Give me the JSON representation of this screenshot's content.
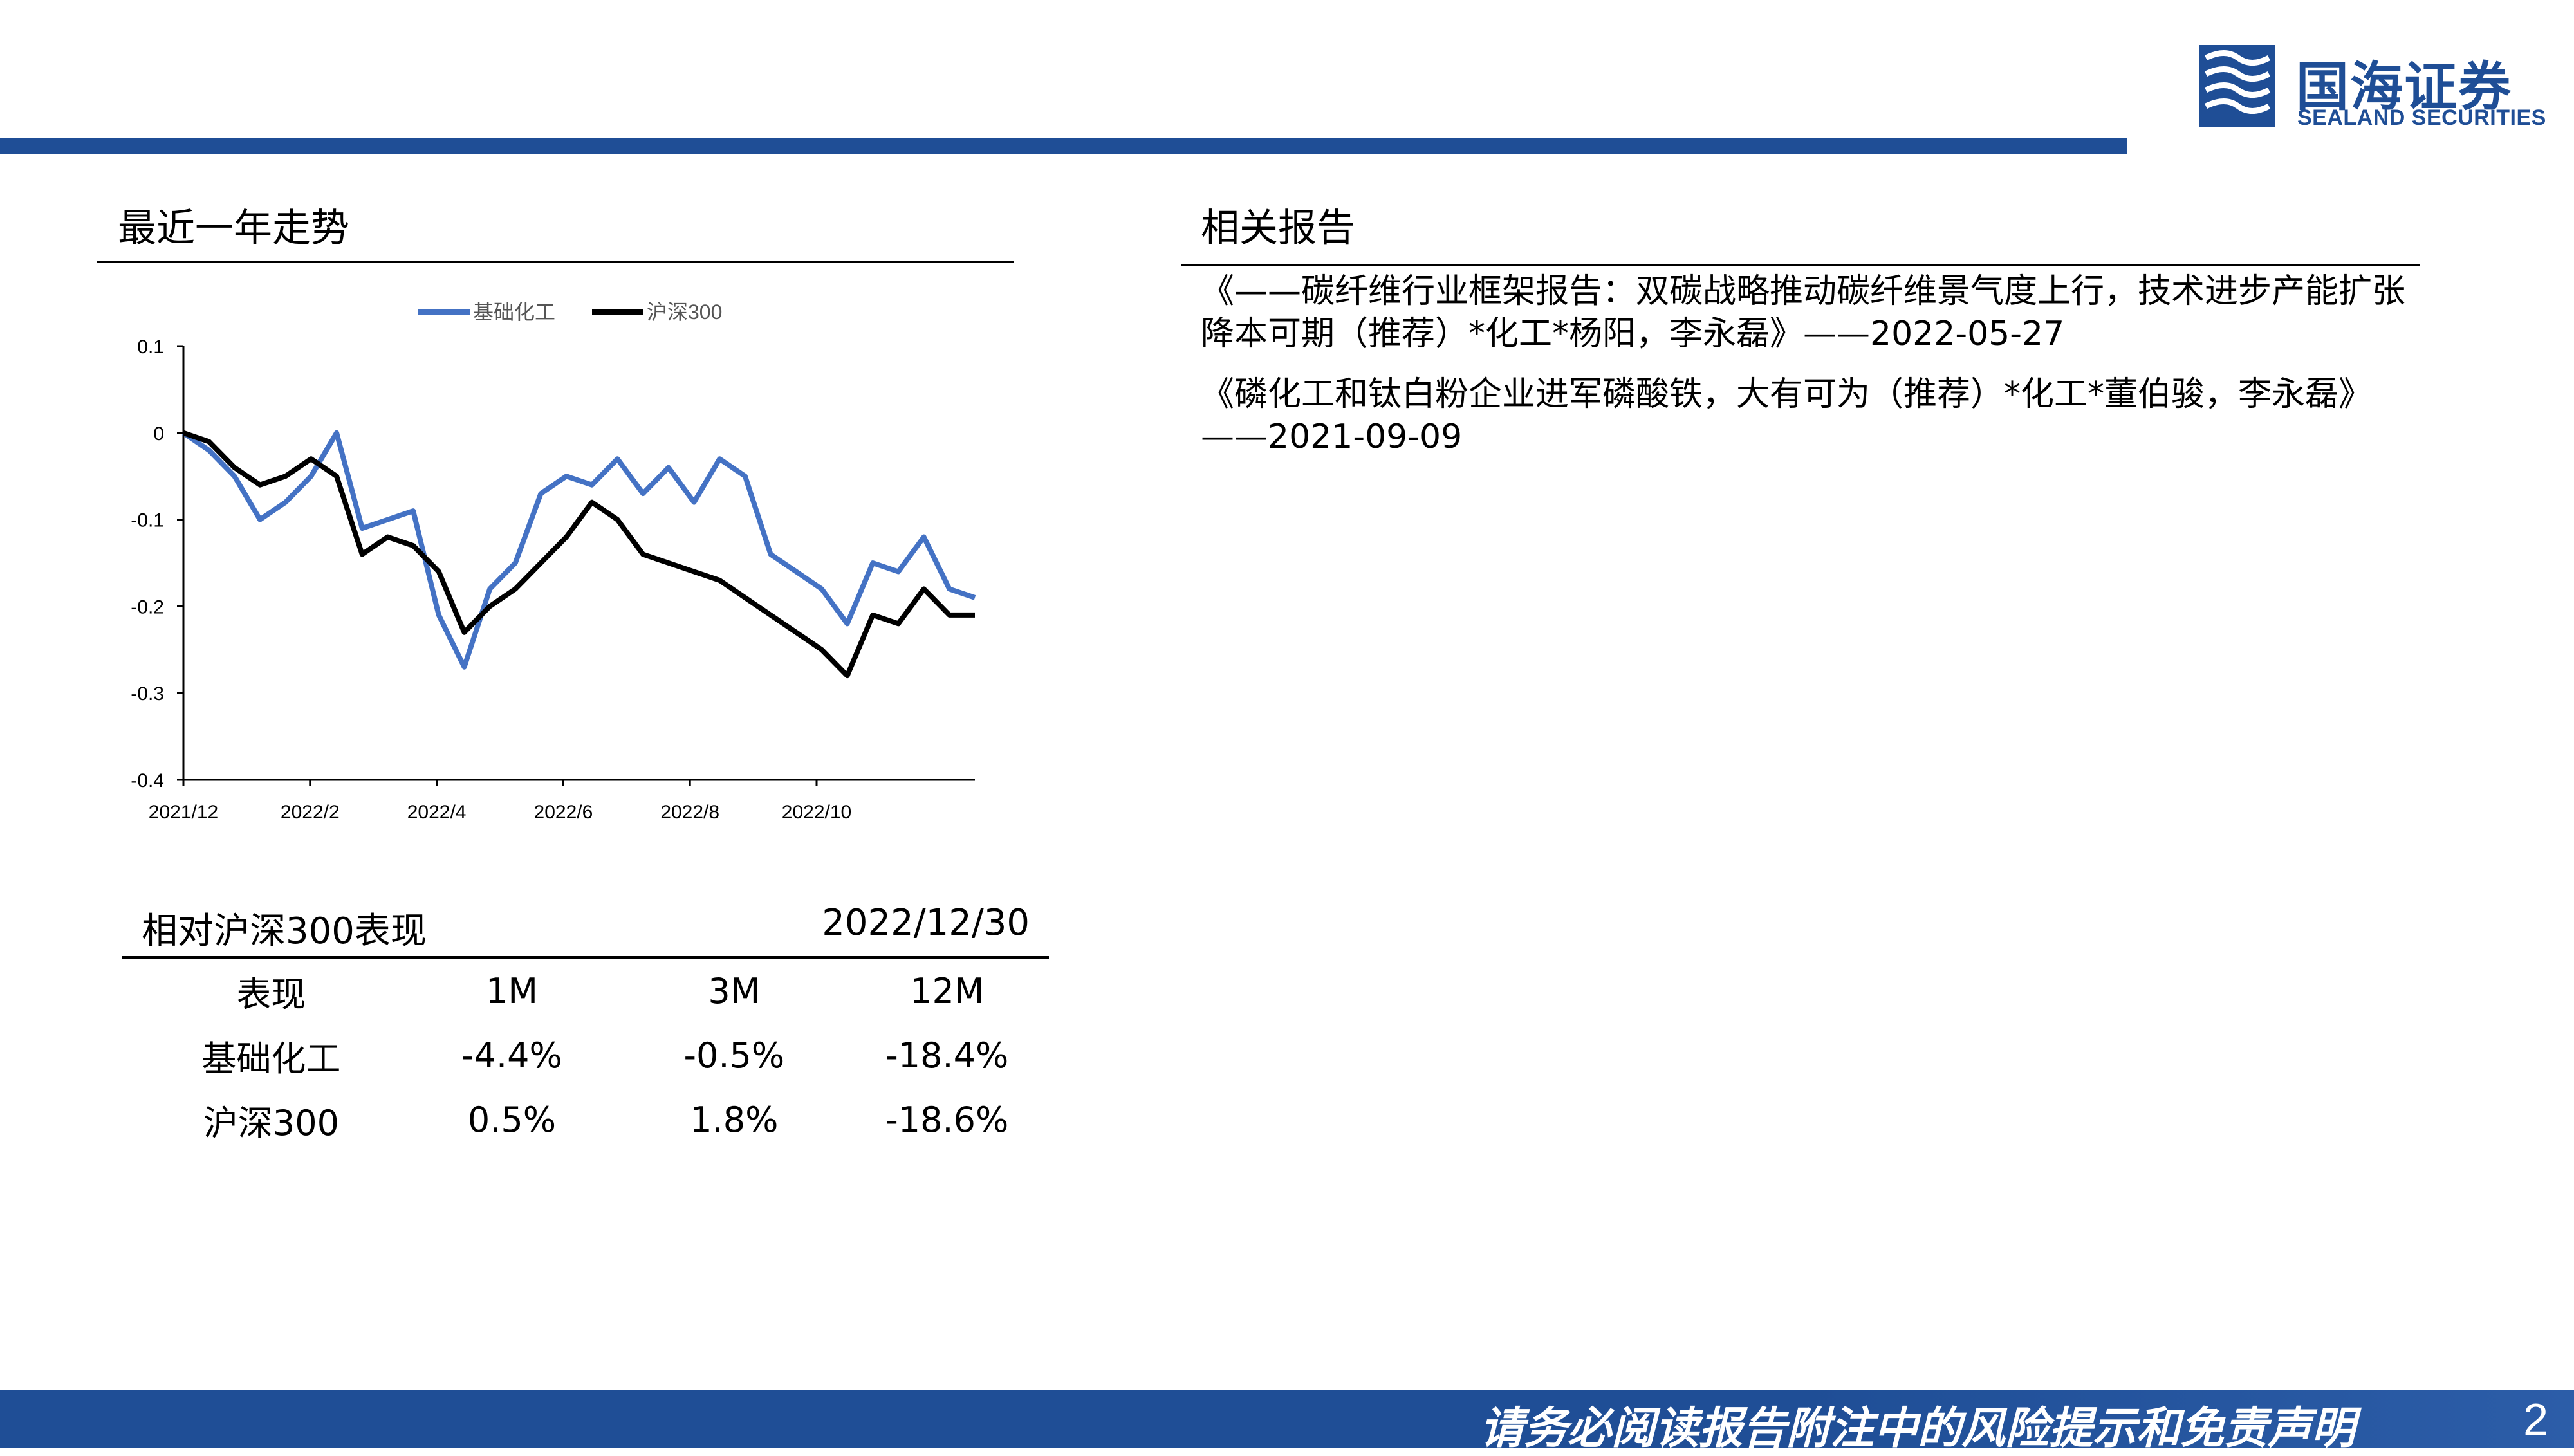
{
  "header": {
    "logo_cn": "国海证券",
    "logo_en": "SEALAND SECURITIES",
    "brand_color": "#1f4e96"
  },
  "trend": {
    "title": "最近一年走势"
  },
  "chart_data": {
    "type": "line",
    "title": "",
    "xlabel": "",
    "ylabel": "",
    "x_ticks": [
      "2021/12",
      "2022/2",
      "2022/4",
      "2022/6",
      "2022/8",
      "2022/10"
    ],
    "y_ticks": [
      "0.1",
      "0",
      "-0.1",
      "-0.2",
      "-0.3",
      "-0.4"
    ],
    "ylim": [
      -0.4,
      0.1
    ],
    "legend_position": "top-center",
    "grid": false,
    "x": [
      "2021/12",
      "2021/12",
      "2022/1",
      "2022/1",
      "2022/1",
      "2022/2",
      "2022/2",
      "2022/3",
      "2022/3",
      "2022/3",
      "2022/4",
      "2022/4",
      "2022/4",
      "2022/5",
      "2022/5",
      "2022/6",
      "2022/6",
      "2022/6",
      "2022/7",
      "2022/7",
      "2022/8",
      "2022/8",
      "2022/8",
      "2022/9",
      "2022/9",
      "2022/10",
      "2022/10",
      "2022/10",
      "2022/11",
      "2022/11",
      "2022/12",
      "2022/12"
    ],
    "series": [
      {
        "name": "基础化工",
        "color": "#4472c4",
        "values": [
          0.0,
          -0.02,
          -0.05,
          -0.1,
          -0.08,
          -0.05,
          0.0,
          -0.11,
          -0.1,
          -0.09,
          -0.21,
          -0.27,
          -0.18,
          -0.15,
          -0.07,
          -0.05,
          -0.06,
          -0.03,
          -0.07,
          -0.04,
          -0.08,
          -0.03,
          -0.05,
          -0.14,
          -0.16,
          -0.18,
          -0.22,
          -0.15,
          -0.16,
          -0.12,
          -0.18,
          -0.19
        ]
      },
      {
        "name": "沪深300",
        "color": "#000000",
        "values": [
          0.0,
          -0.01,
          -0.04,
          -0.06,
          -0.05,
          -0.03,
          -0.05,
          -0.14,
          -0.12,
          -0.13,
          -0.16,
          -0.23,
          -0.2,
          -0.18,
          -0.15,
          -0.12,
          -0.08,
          -0.1,
          -0.14,
          -0.15,
          -0.16,
          -0.17,
          -0.19,
          -0.21,
          -0.23,
          -0.25,
          -0.28,
          -0.21,
          -0.22,
          -0.18,
          -0.21,
          -0.21
        ]
      }
    ]
  },
  "related": {
    "title": "相关报告",
    "items": [
      "《——碳纤维行业框架报告：双碳战略推动碳纤维景气度上行，技术进步产能扩张降本可期（推荐）*化工*杨阳，李永磊》——2022-05-27",
      "《磷化工和钛白粉企业进军磷酸铁，大有可为（推荐）*化工*董伯骏，李永磊》——2021-09-09"
    ]
  },
  "performance": {
    "title": "相对沪深300表现",
    "date": "2022/12/30",
    "columns": [
      "表现",
      "1M",
      "3M",
      "12M"
    ],
    "rows": [
      [
        "基础化工",
        "-4.4%",
        "-0.5%",
        "-18.4%"
      ],
      [
        "沪深300",
        "0.5%",
        "1.8%",
        "-18.6%"
      ]
    ]
  },
  "footer": {
    "disclaimer": "请务必阅读报告附注中的风险提示和免责声明",
    "page": "2"
  }
}
